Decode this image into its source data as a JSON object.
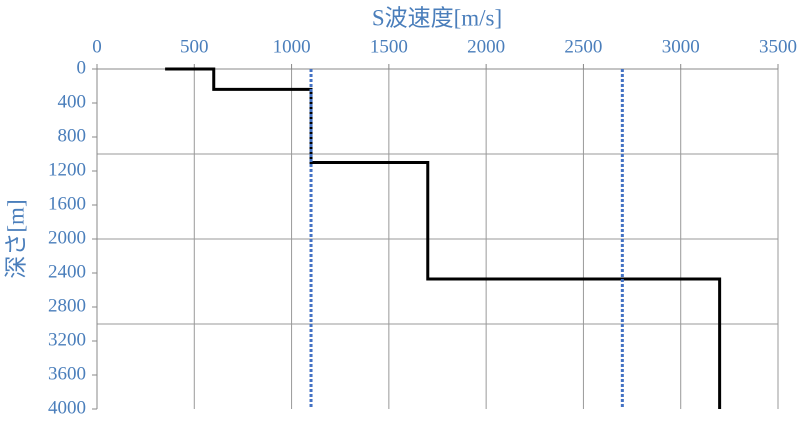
{
  "chart_data": {
    "type": "line",
    "xlabel": "S波速度[m/s]",
    "ylabel": "深さ[m]",
    "xlim": [
      0,
      3500
    ],
    "xticks": [
      0,
      500,
      1000,
      1500,
      2000,
      2500,
      3000,
      3500
    ],
    "ylim": [
      0,
      4000
    ],
    "yticks": [
      0,
      400,
      800,
      1200,
      1600,
      2000,
      2400,
      2800,
      3200,
      3600,
      4000
    ],
    "y_inverted": true,
    "xgrid": [
      500,
      1000,
      1500,
      2000,
      2500,
      3000,
      3500
    ],
    "ygrid": [
      1000,
      2000,
      3000
    ],
    "series": [
      {
        "color": "#000000",
        "style": "solid",
        "x": [
          350,
          600,
          600,
          1100,
          1100,
          1700,
          1700,
          3200,
          3200
        ],
        "values": [
          0,
          0,
          240,
          240,
          1100,
          1100,
          2470,
          2470,
          4000
        ]
      },
      {
        "color": "#4472c4",
        "style": "dotted",
        "x": [
          1100,
          1100
        ],
        "values": [
          0,
          4000
        ]
      },
      {
        "color": "#4472c4",
        "style": "dotted",
        "x": [
          2700,
          2700
        ],
        "values": [
          0,
          4000
        ]
      }
    ]
  }
}
